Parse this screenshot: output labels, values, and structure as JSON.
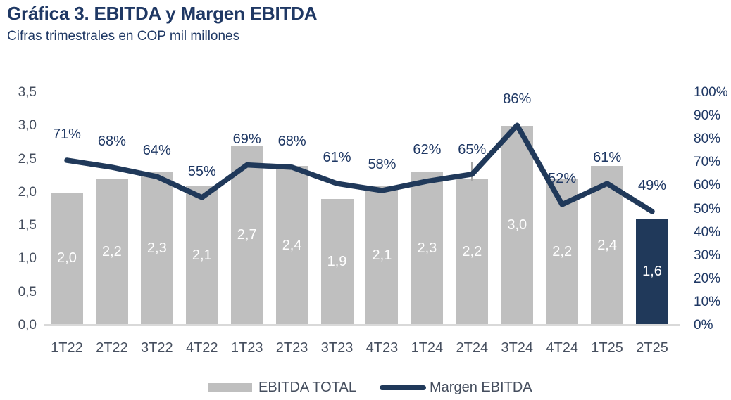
{
  "header": {
    "title": "Gráfica 3. EBITDA y Margen EBITDA",
    "subtitle": "Cifras trimestrales en COP mil millones"
  },
  "chart_data": {
    "type": "combo-bar-line",
    "title": "Gráfica 3. EBITDA y Margen EBITDA",
    "subtitle": "Cifras trimestrales en COP mil millones",
    "categories": [
      "1T22",
      "2T22",
      "3T22",
      "4T22",
      "1T23",
      "2T23",
      "3T23",
      "4T23",
      "1T24",
      "2T24",
      "3T24",
      "4T24",
      "1T25",
      "2T25"
    ],
    "series": [
      {
        "name": "EBITDA TOTAL",
        "type": "bar",
        "axis": "left",
        "values": [
          2.0,
          2.2,
          2.3,
          2.1,
          2.7,
          2.4,
          1.9,
          2.1,
          2.3,
          2.2,
          3.0,
          2.2,
          2.4,
          1.6
        ],
        "labels": [
          "2,0",
          "2,2",
          "2,3",
          "2,1",
          "2,7",
          "2,4",
          "1,9",
          "2,1",
          "2,3",
          "2,2",
          "3,0",
          "2,2",
          "2,4",
          "1,6"
        ],
        "color": "#bfbfbf",
        "highlight_index": 13,
        "highlight_color": "#20395a",
        "label_color": "#ffffff"
      },
      {
        "name": "Margen EBITDA",
        "type": "line",
        "axis": "right",
        "values": [
          71,
          68,
          64,
          55,
          69,
          68,
          61,
          58,
          62,
          65,
          86,
          52,
          61,
          49
        ],
        "labels": [
          "71%",
          "68%",
          "64%",
          "55%",
          "69%",
          "68%",
          "61%",
          "58%",
          "62%",
          "65%",
          "86%",
          "52%",
          "61%",
          "49%"
        ],
        "color": "#20395a",
        "label_color": "#1f3864"
      }
    ],
    "left_axis": {
      "min": 0,
      "max": 3.5,
      "step": 0.5,
      "ticks_bottom_to_top": [
        "0,0",
        "0,5",
        "1,0",
        "1,5",
        "2,0",
        "2,5",
        "3,0",
        "3,5"
      ]
    },
    "right_axis": {
      "min": 0,
      "max": 100,
      "step": 10,
      "ticks_bottom_to_top": [
        "0%",
        "10%",
        "20%",
        "30%",
        "40%",
        "50%",
        "60%",
        "70%",
        "80%",
        "90%",
        "100%"
      ]
    },
    "grid": "off",
    "legend": {
      "position": "bottom",
      "items": [
        {
          "label": "EBITDA TOTAL",
          "swatch": "bar",
          "color": "#bfbfbf"
        },
        {
          "label": "Margen EBITDA",
          "swatch": "line",
          "color": "#20395a"
        }
      ]
    },
    "annotations": {
      "leader_line_category": "2T24",
      "leader_line_color": "#a6a6a6"
    }
  },
  "colors": {
    "title_navy": "#1f3864",
    "series_navy": "#20395a",
    "bar_gray": "#bfbfbf",
    "axis_text": "#454e5e",
    "axis_line": "#d9d9d9",
    "background": "#ffffff"
  }
}
